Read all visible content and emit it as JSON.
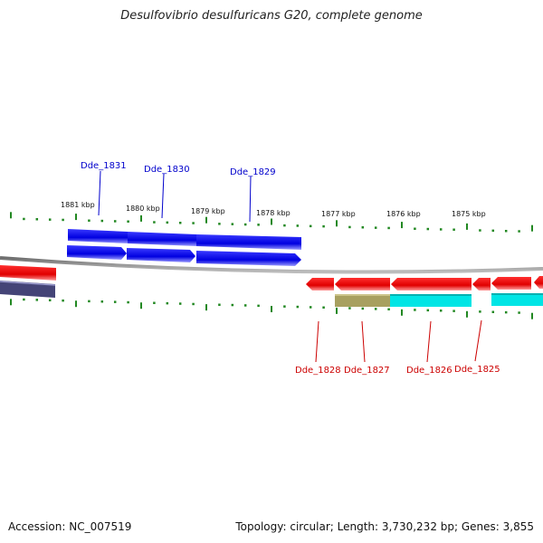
{
  "title": "Desulfovibrio desulfuricans G20, complete genome",
  "footer": {
    "accession": "Accession: NC_007519",
    "summary": "Topology: circular; Length: 3,730,232 bp; Genes: 3,855"
  },
  "colors": {
    "forward_gene": "#0000e6",
    "reverse_gene": "#ee0000",
    "backbone": "#808080",
    "ticks": "#228822",
    "forward_label": "#0000cc",
    "reverse_label": "#cc0000",
    "olive_feature": "#a8a060",
    "cyan_feature": "#00e5e5",
    "slate_feature": "#444477"
  },
  "tick_labels": [
    "1881 kbp",
    "1880 kbp",
    "1879 kbp",
    "1878 kbp",
    "1877 kbp",
    "1876 kbp",
    "1875 kbp"
  ],
  "forward_labels": [
    "Dde_1831",
    "Dde_1830",
    "Dde_1829"
  ],
  "reverse_labels": [
    "Dde_1828",
    "Dde_1827",
    "Dde_1826",
    "Dde_1825"
  ]
}
